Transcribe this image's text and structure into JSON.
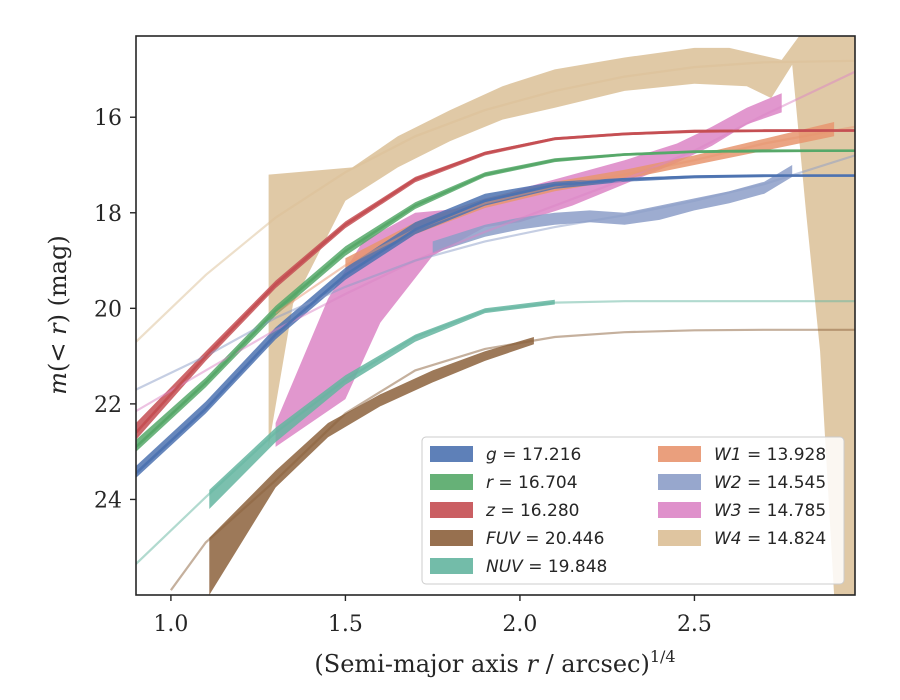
{
  "chart_data": {
    "type": "line",
    "xlabel": "(Semi-major axis r / arcsec)^1/4",
    "ylabel": "m(< r) (mag)",
    "xlim": [
      0.9,
      2.96
    ],
    "ylim": [
      26.0,
      14.3
    ],
    "y_inverted": true,
    "grid": false,
    "legend_position": "lower-right",
    "x_ticks": [
      "1.0",
      "1.5",
      "2.0",
      "2.5"
    ],
    "x_tick_values": [
      1.0,
      1.5,
      2.0,
      2.5
    ],
    "y_ticks": [
      "16",
      "18",
      "20",
      "22",
      "24"
    ],
    "y_tick_values": [
      16,
      18,
      20,
      22,
      24
    ],
    "series": [
      {
        "name": "g = 17.216",
        "legend_var": "g",
        "legend_val": "17.216",
        "color": "#4c72b0",
        "fit": [
          [
            0.9,
            23.45
          ],
          [
            1.1,
            22.1
          ],
          [
            1.3,
            20.55
          ],
          [
            1.5,
            19.3
          ],
          [
            1.7,
            18.35
          ],
          [
            1.9,
            17.75
          ],
          [
            2.1,
            17.42
          ],
          [
            2.3,
            17.3
          ],
          [
            2.5,
            17.24
          ],
          [
            2.7,
            17.22
          ],
          [
            2.96,
            17.22
          ]
        ],
        "band_upper": [
          [
            0.9,
            23.3
          ],
          [
            1.1,
            21.95
          ],
          [
            1.3,
            20.4
          ],
          [
            1.5,
            19.15
          ],
          [
            1.7,
            18.2
          ],
          [
            1.9,
            17.6
          ],
          [
            2.1,
            17.35
          ],
          [
            2.3,
            17.27
          ],
          [
            2.5,
            17.22
          ],
          [
            2.75,
            17.2
          ],
          [
            2.96,
            17.2
          ]
        ],
        "band_lower": [
          [
            0.9,
            23.55
          ],
          [
            1.1,
            22.2
          ],
          [
            1.3,
            20.65
          ],
          [
            1.5,
            19.4
          ],
          [
            1.7,
            18.45
          ],
          [
            1.9,
            17.85
          ],
          [
            2.1,
            17.5
          ],
          [
            2.3,
            17.35
          ],
          [
            2.5,
            17.28
          ],
          [
            2.75,
            17.25
          ],
          [
            2.96,
            17.25
          ]
        ]
      },
      {
        "name": "r = 16.704",
        "legend_var": "r",
        "legend_val": "16.704",
        "color": "#55a868",
        "fit": [
          [
            0.9,
            22.9
          ],
          [
            1.1,
            21.55
          ],
          [
            1.3,
            20.05
          ],
          [
            1.5,
            18.8
          ],
          [
            1.7,
            17.85
          ],
          [
            1.9,
            17.2
          ],
          [
            2.1,
            16.9
          ],
          [
            2.3,
            16.78
          ],
          [
            2.5,
            16.72
          ],
          [
            2.7,
            16.7
          ],
          [
            2.96,
            16.7
          ]
        ],
        "band_upper": [
          [
            0.9,
            22.75
          ],
          [
            1.1,
            21.45
          ],
          [
            1.3,
            19.95
          ],
          [
            1.5,
            18.7
          ],
          [
            1.7,
            17.78
          ],
          [
            1.9,
            17.15
          ],
          [
            2.1,
            16.86
          ],
          [
            2.3,
            16.75
          ],
          [
            2.5,
            16.7
          ],
          [
            2.96,
            16.68
          ]
        ],
        "band_lower": [
          [
            0.9,
            23.0
          ],
          [
            1.1,
            21.65
          ],
          [
            1.3,
            20.15
          ],
          [
            1.5,
            18.9
          ],
          [
            1.7,
            17.92
          ],
          [
            1.9,
            17.25
          ],
          [
            2.1,
            16.94
          ],
          [
            2.3,
            16.81
          ],
          [
            2.5,
            16.75
          ],
          [
            2.96,
            16.72
          ]
        ]
      },
      {
        "name": "z = 16.280",
        "legend_var": "z",
        "legend_val": "16.280",
        "color": "#c44e52",
        "fit": [
          [
            0.9,
            22.6
          ],
          [
            1.1,
            21.0
          ],
          [
            1.3,
            19.5
          ],
          [
            1.5,
            18.25
          ],
          [
            1.7,
            17.3
          ],
          [
            1.9,
            16.75
          ],
          [
            2.1,
            16.45
          ],
          [
            2.3,
            16.35
          ],
          [
            2.5,
            16.3
          ],
          [
            2.7,
            16.28
          ],
          [
            2.96,
            16.28
          ]
        ],
        "band_upper": [
          [
            0.9,
            22.4
          ],
          [
            1.1,
            20.9
          ],
          [
            1.3,
            19.42
          ],
          [
            1.5,
            18.18
          ],
          [
            1.7,
            17.25
          ],
          [
            1.9,
            16.72
          ],
          [
            2.1,
            16.42
          ],
          [
            2.3,
            16.32
          ],
          [
            2.5,
            16.26
          ],
          [
            2.96,
            16.25
          ]
        ],
        "band_lower": [
          [
            0.9,
            22.75
          ],
          [
            1.1,
            21.1
          ],
          [
            1.3,
            19.58
          ],
          [
            1.5,
            18.32
          ],
          [
            1.7,
            17.36
          ],
          [
            1.9,
            16.8
          ],
          [
            2.1,
            16.48
          ],
          [
            2.3,
            16.38
          ],
          [
            2.5,
            16.32
          ],
          [
            2.96,
            16.3
          ]
        ]
      },
      {
        "name": "FUV = 20.446",
        "legend_var": "FUV",
        "legend_val": "20.446",
        "color": "#8c613c",
        "fit": [
          [
            1.0,
            25.9
          ],
          [
            1.1,
            24.9
          ],
          [
            1.3,
            23.6
          ],
          [
            1.5,
            22.2
          ],
          [
            1.7,
            21.3
          ],
          [
            1.9,
            20.85
          ],
          [
            2.1,
            20.6
          ],
          [
            2.3,
            20.5
          ],
          [
            2.5,
            20.46
          ],
          [
            2.7,
            20.45
          ],
          [
            2.96,
            20.45
          ]
        ],
        "band_upper": [
          [
            1.11,
            24.8
          ],
          [
            1.3,
            23.4
          ],
          [
            1.45,
            22.4
          ],
          [
            1.6,
            21.8
          ],
          [
            1.75,
            21.3
          ],
          [
            1.9,
            20.9
          ],
          [
            2.04,
            20.6
          ]
        ],
        "band_lower": [
          [
            1.11,
            26.0
          ],
          [
            1.3,
            23.75
          ],
          [
            1.45,
            22.7
          ],
          [
            1.6,
            22.05
          ],
          [
            1.75,
            21.55
          ],
          [
            1.9,
            21.1
          ],
          [
            2.04,
            20.75
          ]
        ]
      },
      {
        "name": "NUV = 19.848",
        "legend_var": "NUV",
        "legend_val": "19.848",
        "color": "#64b5a0",
        "fit": [
          [
            0.9,
            25.35
          ],
          [
            1.1,
            23.95
          ],
          [
            1.3,
            22.6
          ],
          [
            1.5,
            21.5
          ],
          [
            1.7,
            20.6
          ],
          [
            1.9,
            20.05
          ],
          [
            2.1,
            19.88
          ],
          [
            2.3,
            19.85
          ],
          [
            2.5,
            19.85
          ],
          [
            2.96,
            19.85
          ]
        ],
        "band_upper": [
          [
            1.11,
            23.8
          ],
          [
            1.3,
            22.5
          ],
          [
            1.5,
            21.4
          ],
          [
            1.7,
            20.55
          ],
          [
            1.9,
            20.0
          ],
          [
            2.1,
            19.82
          ]
        ],
        "band_lower": [
          [
            1.11,
            24.2
          ],
          [
            1.3,
            22.8
          ],
          [
            1.5,
            21.6
          ],
          [
            1.7,
            20.7
          ],
          [
            1.9,
            20.1
          ],
          [
            2.1,
            19.92
          ]
        ]
      },
      {
        "name": "W1 = 13.928",
        "legend_var": "W1",
        "legend_val": "13.928",
        "color": "#e8956f",
        "fit": [
          [
            1.3,
            20.1
          ],
          [
            1.5,
            19.1
          ],
          [
            1.7,
            18.35
          ],
          [
            1.9,
            17.8
          ],
          [
            2.1,
            17.45
          ],
          [
            2.3,
            17.2
          ],
          [
            2.5,
            16.9
          ],
          [
            2.7,
            16.55
          ],
          [
            2.96,
            16.2
          ]
        ],
        "band_upper": [
          [
            1.5,
            18.95
          ],
          [
            1.7,
            18.2
          ],
          [
            1.9,
            17.7
          ],
          [
            2.1,
            17.35
          ],
          [
            2.3,
            17.1
          ],
          [
            2.5,
            16.8
          ],
          [
            2.7,
            16.45
          ],
          [
            2.9,
            16.1
          ]
        ],
        "band_lower": [
          [
            1.5,
            19.2
          ],
          [
            1.7,
            18.45
          ],
          [
            1.9,
            17.9
          ],
          [
            2.1,
            17.55
          ],
          [
            2.3,
            17.3
          ],
          [
            2.5,
            17.0
          ],
          [
            2.7,
            16.7
          ],
          [
            2.9,
            16.4
          ]
        ]
      },
      {
        "name": "W2 = 14.545",
        "legend_var": "W2",
        "legend_val": "14.545",
        "color": "#8c9dc8",
        "fit": [
          [
            0.9,
            21.7
          ],
          [
            1.1,
            21.0
          ],
          [
            1.3,
            20.2
          ],
          [
            1.5,
            19.55
          ],
          [
            1.7,
            19.0
          ],
          [
            1.9,
            18.6
          ],
          [
            2.1,
            18.3
          ],
          [
            2.3,
            18.05
          ],
          [
            2.5,
            17.75
          ],
          [
            2.7,
            17.4
          ],
          [
            2.96,
            16.8
          ]
        ],
        "band_upper": [
          [
            1.75,
            18.6
          ],
          [
            1.9,
            18.25
          ],
          [
            2.0,
            18.1
          ],
          [
            2.1,
            18.0
          ],
          [
            2.2,
            17.95
          ],
          [
            2.3,
            18.0
          ],
          [
            2.4,
            17.85
          ],
          [
            2.5,
            17.7
          ],
          [
            2.6,
            17.55
          ],
          [
            2.7,
            17.35
          ],
          [
            2.78,
            17.0
          ]
        ],
        "band_lower": [
          [
            1.75,
            18.85
          ],
          [
            1.9,
            18.5
          ],
          [
            2.0,
            18.35
          ],
          [
            2.1,
            18.25
          ],
          [
            2.2,
            18.2
          ],
          [
            2.3,
            18.25
          ],
          [
            2.4,
            18.15
          ],
          [
            2.5,
            17.95
          ],
          [
            2.6,
            17.8
          ],
          [
            2.7,
            17.6
          ],
          [
            2.78,
            17.25
          ]
        ]
      },
      {
        "name": "W3 = 14.785",
        "legend_var": "W3",
        "legend_val": "14.785",
        "color": "#dc85c5",
        "fit": [
          [
            0.9,
            22.15
          ],
          [
            1.1,
            21.3
          ],
          [
            1.3,
            20.45
          ],
          [
            1.5,
            19.7
          ],
          [
            1.7,
            19.0
          ],
          [
            1.9,
            18.4
          ],
          [
            2.1,
            17.85
          ],
          [
            2.3,
            17.3
          ],
          [
            2.5,
            16.7
          ],
          [
            2.7,
            15.95
          ],
          [
            2.96,
            15.05
          ]
        ],
        "band_upper": [
          [
            1.3,
            22.4
          ],
          [
            1.45,
            19.8
          ],
          [
            1.55,
            18.6
          ],
          [
            1.7,
            18.0
          ],
          [
            1.85,
            17.9
          ],
          [
            2.0,
            17.5
          ],
          [
            2.15,
            17.2
          ],
          [
            2.3,
            16.9
          ],
          [
            2.45,
            16.55
          ],
          [
            2.55,
            16.2
          ],
          [
            2.65,
            15.8
          ],
          [
            2.75,
            15.5
          ]
        ],
        "band_lower": [
          [
            1.3,
            22.9
          ],
          [
            1.5,
            21.9
          ],
          [
            1.6,
            20.3
          ],
          [
            1.75,
            18.9
          ],
          [
            1.9,
            18.3
          ],
          [
            2.0,
            18.2
          ],
          [
            2.15,
            17.85
          ],
          [
            2.3,
            17.4
          ],
          [
            2.45,
            16.95
          ],
          [
            2.55,
            16.6
          ],
          [
            2.65,
            16.15
          ],
          [
            2.75,
            15.9
          ]
        ]
      },
      {
        "name": "W4 = 14.824",
        "legend_var": "W4",
        "legend_val": "14.824",
        "color": "#dbbf96",
        "fit": [
          [
            0.9,
            20.7
          ],
          [
            1.1,
            19.3
          ],
          [
            1.3,
            18.1
          ],
          [
            1.5,
            17.15
          ],
          [
            1.7,
            16.4
          ],
          [
            1.9,
            15.85
          ],
          [
            2.1,
            15.45
          ],
          [
            2.3,
            15.15
          ],
          [
            2.5,
            14.95
          ],
          [
            2.7,
            14.85
          ],
          [
            2.96,
            14.82
          ]
        ],
        "band_upper": [
          [
            1.28,
            17.2
          ],
          [
            1.52,
            17.05
          ],
          [
            1.65,
            16.4
          ],
          [
            1.8,
            15.85
          ],
          [
            1.95,
            15.35
          ],
          [
            2.1,
            15.0
          ],
          [
            2.3,
            14.75
          ],
          [
            2.5,
            14.55
          ],
          [
            2.6,
            14.55
          ],
          [
            2.75,
            14.8
          ],
          [
            2.8,
            14.3
          ],
          [
            2.96,
            14.3
          ]
        ],
        "band_lower": [
          [
            1.28,
            22.9
          ],
          [
            1.35,
            19.9
          ],
          [
            1.5,
            17.75
          ],
          [
            1.65,
            17.05
          ],
          [
            1.8,
            16.5
          ],
          [
            1.95,
            16.05
          ],
          [
            2.1,
            15.8
          ],
          [
            2.3,
            15.45
          ],
          [
            2.5,
            15.3
          ],
          [
            2.65,
            15.35
          ],
          [
            2.72,
            15.6
          ],
          [
            2.78,
            14.9
          ],
          [
            2.82,
            18.0
          ],
          [
            2.86,
            20.9
          ],
          [
            2.9,
            26.0
          ],
          [
            2.96,
            26.0
          ]
        ]
      }
    ]
  }
}
